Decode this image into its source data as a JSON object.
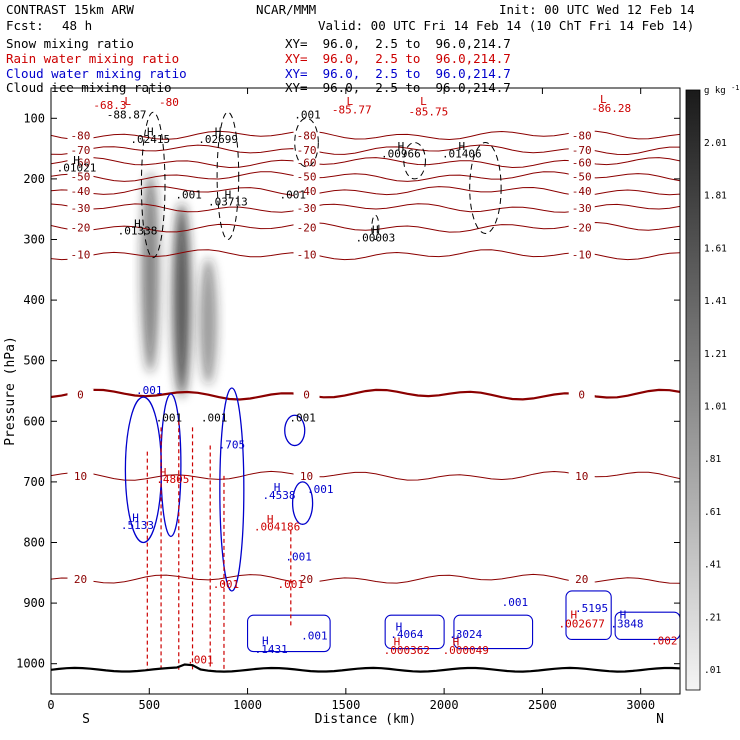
{
  "header": {
    "model": "CONTRAST 15km ARW",
    "center": "NCAR/MMM",
    "init": "Init: 00 UTC Wed 12 Feb 14",
    "fcst_label": "Fcst:",
    "fcst_value": "48 h",
    "valid": "Valid: 00 UTC Fri 14 Feb 14 (10 ChT Fri 14 Feb 14)"
  },
  "fields": [
    {
      "name": "Snow mixing ratio",
      "xy": "XY=  96.0,  2.5 to  96.0,214.7",
      "color": "#000000"
    },
    {
      "name": "Rain water mixing ratio",
      "xy": "XY=  96.0,  2.5 to  96.0,214.7",
      "color": "#cc0000"
    },
    {
      "name": "Cloud water mixing ratio",
      "xy": "XY=  96.0,  2.5 to  96.0,214.7",
      "color": "#0000cc"
    },
    {
      "name": "Cloud ice mixing ratio",
      "xy": "XY=  96.0,  2.5 to  96.0,214.7",
      "color": "#000000"
    }
  ],
  "chart_data": {
    "type": "heatmap",
    "xlabel": "Distance (km)",
    "ylabel": "Pressure (hPa)",
    "xlim": [
      0,
      3200
    ],
    "ylim": [
      1050,
      50
    ],
    "x_ticks": [
      0,
      500,
      1000,
      1500,
      2000,
      2500,
      3000
    ],
    "y_ticks": [
      100,
      200,
      300,
      400,
      500,
      600,
      700,
      800,
      900,
      1000
    ],
    "x_end_labels": {
      "left": "S",
      "right": "N"
    },
    "colorbar": {
      "unit": "g kg",
      "unit_exp": "-1",
      "levels": [
        ".01",
        ".21",
        ".41",
        ".61",
        ".81",
        "1.01",
        "1.21",
        "1.41",
        "1.61",
        "1.81",
        "2.01"
      ]
    },
    "temperature_contours": [
      {
        "label": "-80",
        "p": 128
      },
      {
        "label": "-70",
        "p": 152
      },
      {
        "label": "-60",
        "p": 173
      },
      {
        "label": "-50",
        "p": 196
      },
      {
        "label": "-40",
        "p": 220
      },
      {
        "label": "-30",
        "p": 248
      },
      {
        "label": "-20",
        "p": 280
      },
      {
        "label": "-10",
        "p": 325
      },
      {
        "label": "0",
        "p": 556
      },
      {
        "label": "10",
        "p": 690
      },
      {
        "label": "20",
        "p": 860
      }
    ],
    "annotations": [
      {
        "text": "-68.3",
        "x": 300,
        "p": 85,
        "color": "#cc0000"
      },
      {
        "text": "L",
        "x": 390,
        "p": 78,
        "color": "#cc0000"
      },
      {
        "text": "-88.87",
        "x": 385,
        "p": 100,
        "color": "#000000"
      },
      {
        "text": "-80",
        "x": 600,
        "p": 80,
        "color": "#cc0000"
      },
      {
        "text": "L",
        "x": 1520,
        "p": 78,
        "color": "#cc0000"
      },
      {
        "text": "-85.77",
        "x": 1530,
        "p": 92,
        "color": "#cc0000"
      },
      {
        "text": "L",
        "x": 1895,
        "p": 78,
        "color": "#cc0000"
      },
      {
        "text": "-85.75",
        "x": 1920,
        "p": 95,
        "color": "#cc0000"
      },
      {
        "text": "L",
        "x": 2810,
        "p": 75,
        "color": "#cc0000"
      },
      {
        "text": "-86.28",
        "x": 2850,
        "p": 90,
        "color": "#cc0000"
      },
      {
        "text": ".001",
        "x": 1305,
        "p": 100,
        "color": "#000000"
      },
      {
        "text": "H",
        "x": 505,
        "p": 128,
        "color": "#000000"
      },
      {
        "text": ".02415",
        "x": 505,
        "p": 141,
        "color": "#000000"
      },
      {
        "text": "H",
        "x": 850,
        "p": 128,
        "color": "#000000"
      },
      {
        "text": ".02699",
        "x": 850,
        "p": 141,
        "color": "#000000"
      },
      {
        "text": "H",
        "x": 1780,
        "p": 152,
        "color": "#000000"
      },
      {
        "text": ".00966",
        "x": 1780,
        "p": 165,
        "color": "#000000"
      },
      {
        "text": "H",
        "x": 2090,
        "p": 152,
        "color": "#000000"
      },
      {
        "text": ".01406",
        "x": 2090,
        "p": 165,
        "color": "#000000"
      },
      {
        "text": "H",
        "x": 130,
        "p": 175,
        "color": "#000000"
      },
      {
        "text": ".01021",
        "x": 130,
        "p": 188,
        "color": "#000000"
      },
      {
        "text": ".001",
        "x": 700,
        "p": 232,
        "color": "#000000"
      },
      {
        "text": "H",
        "x": 900,
        "p": 232,
        "color": "#000000"
      },
      {
        "text": ".03713",
        "x": 900,
        "p": 244,
        "color": "#000000"
      },
      {
        "text": ".001",
        "x": 1230,
        "p": 232,
        "color": "#000000"
      },
      {
        "text": "H",
        "x": 440,
        "p": 280,
        "color": "#000000"
      },
      {
        "text": ".01338",
        "x": 440,
        "p": 292,
        "color": "#000000"
      },
      {
        "text": "H",
        "x": 1650,
        "p": 290,
        "color": "#000000"
      },
      {
        "text": ".00003",
        "x": 1650,
        "p": 303,
        "color": "#000000"
      },
      {
        "text": ".001",
        "x": 500,
        "p": 555,
        "color": "#0000cc"
      },
      {
        "text": ".001",
        "x": 600,
        "p": 600,
        "color": "#000000"
      },
      {
        "text": ".001",
        "x": 830,
        "p": 600,
        "color": "#000000"
      },
      {
        "text": ".001",
        "x": 1280,
        "p": 600,
        "color": "#000000"
      },
      {
        "text": ".705",
        "x": 920,
        "p": 645,
        "color": "#0000cc"
      },
      {
        "text": "H",
        "x": 570,
        "p": 690,
        "color": "#cc0000"
      },
      {
        "text": ".4805",
        "x": 620,
        "p": 702,
        "color": "#cc0000"
      },
      {
        "text": "H",
        "x": 1150,
        "p": 715,
        "color": "#0000cc"
      },
      {
        "text": ".4538",
        "x": 1160,
        "p": 728,
        "color": "#0000cc"
      },
      {
        "text": ".001",
        "x": 1370,
        "p": 718,
        "color": "#0000cc"
      },
      {
        "text": "H",
        "x": 1115,
        "p": 768,
        "color": "#cc0000"
      },
      {
        "text": ".004186",
        "x": 1150,
        "p": 780,
        "color": "#cc0000"
      },
      {
        "text": "H",
        "x": 430,
        "p": 765,
        "color": "#0000cc"
      },
      {
        "text": ".5133",
        "x": 440,
        "p": 778,
        "color": "#0000cc"
      },
      {
        "text": ".001",
        "x": 1260,
        "p": 830,
        "color": "#0000cc"
      },
      {
        "text": ".001",
        "x": 890,
        "p": 875,
        "color": "#cc0000"
      },
      {
        "text": ".001",
        "x": 1220,
        "p": 875,
        "color": "#cc0000"
      },
      {
        "text": ".001",
        "x": 2360,
        "p": 905,
        "color": "#0000cc"
      },
      {
        "text": ".5195",
        "x": 2750,
        "p": 915,
        "color": "#0000cc"
      },
      {
        "text": "H",
        "x": 2660,
        "p": 925,
        "color": "#cc0000"
      },
      {
        "text": ".002677",
        "x": 2700,
        "p": 940,
        "color": "#cc0000"
      },
      {
        "text": "H",
        "x": 2910,
        "p": 925,
        "color": "#0000cc"
      },
      {
        "text": ".3848",
        "x": 2930,
        "p": 940,
        "color": "#0000cc"
      },
      {
        "text": ".002",
        "x": 3120,
        "p": 968,
        "color": "#cc0000"
      },
      {
        "text": "H",
        "x": 1770,
        "p": 945,
        "color": "#0000cc"
      },
      {
        "text": ".4064",
        "x": 1810,
        "p": 958,
        "color": "#0000cc"
      },
      {
        "text": "H",
        "x": 1760,
        "p": 970,
        "color": "#cc0000"
      },
      {
        "text": ".000362",
        "x": 1810,
        "p": 984,
        "color": "#cc0000"
      },
      {
        "text": "H",
        "x": 2060,
        "p": 965,
        "color": "#0000cc"
      },
      {
        "text": ".3024",
        "x": 2110,
        "p": 958,
        "color": "#0000cc"
      },
      {
        "text": "H",
        "x": 2060,
        "p": 970,
        "color": "#cc0000"
      },
      {
        "text": ".000049",
        "x": 2110,
        "p": 984,
        "color": "#cc0000"
      },
      {
        "text": "H",
        "x": 1090,
        "p": 968,
        "color": "#0000cc"
      },
      {
        "text": ".1431",
        "x": 1120,
        "p": 982,
        "color": "#0000cc"
      },
      {
        "text": ".001",
        "x": 1340,
        "p": 960,
        "color": "#0000cc"
      },
      {
        "text": ".001",
        "x": 760,
        "p": 1000,
        "color": "#cc0000"
      }
    ]
  }
}
